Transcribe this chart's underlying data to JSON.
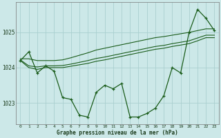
{
  "hours": [
    0,
    1,
    2,
    3,
    4,
    5,
    6,
    7,
    8,
    9,
    10,
    11,
    12,
    13,
    14,
    15,
    16,
    17,
    18,
    19,
    20,
    21,
    22,
    23
  ],
  "pressure_line": [
    1024.2,
    1024.45,
    1023.85,
    1024.05,
    1023.9,
    1023.15,
    1023.1,
    1022.65,
    1022.6,
    1023.3,
    1023.5,
    1023.4,
    1023.55,
    1022.6,
    1022.6,
    1022.7,
    1022.85,
    1023.2,
    1024.0,
    1023.85,
    1025.0,
    1025.65,
    1025.4,
    1025.05
  ],
  "line_top": [
    1024.25,
    1024.25,
    1024.2,
    1024.2,
    1024.2,
    1024.22,
    1024.28,
    1024.35,
    1024.42,
    1024.5,
    1024.55,
    1024.6,
    1024.65,
    1024.7,
    1024.75,
    1024.8,
    1024.85,
    1024.88,
    1024.92,
    1024.96,
    1025.0,
    1025.05,
    1025.1,
    1025.1
  ],
  "line_mid1": [
    1024.22,
    1024.05,
    1024.02,
    1024.05,
    1024.05,
    1024.06,
    1024.1,
    1024.15,
    1024.2,
    1024.26,
    1024.3,
    1024.35,
    1024.4,
    1024.45,
    1024.5,
    1024.55,
    1024.6,
    1024.63,
    1024.68,
    1024.72,
    1024.76,
    1024.84,
    1024.92,
    1024.92
  ],
  "line_mid2": [
    1024.2,
    1024.0,
    1023.95,
    1024.0,
    1024.0,
    1024.0,
    1024.04,
    1024.08,
    1024.12,
    1024.18,
    1024.22,
    1024.27,
    1024.32,
    1024.37,
    1024.42,
    1024.47,
    1024.52,
    1024.55,
    1024.6,
    1024.64,
    1024.68,
    1024.76,
    1024.85,
    1024.85
  ],
  "ylim": [
    1022.4,
    1025.85
  ],
  "yticks": [
    1023,
    1024,
    1025
  ],
  "bg_color": "#cce8e8",
  "grid_color": "#aacfcf",
  "line_color": "#1a5c1a",
  "xlabel": "Graphe pression niveau de la mer (hPa)"
}
